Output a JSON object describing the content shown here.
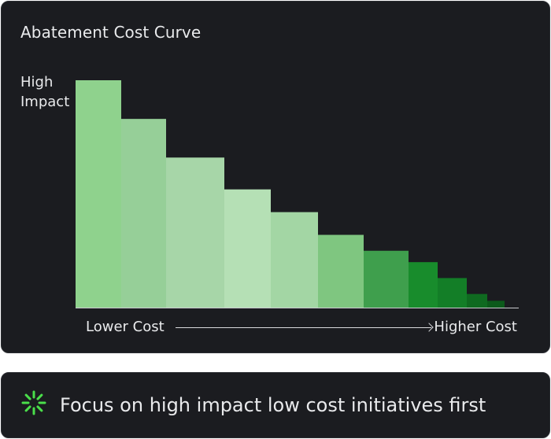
{
  "chart_data": {
    "type": "bar",
    "title": "Abatement Cost Curve",
    "ylabel_lines": [
      "High",
      "Impact"
    ],
    "xlabel_left": "Lower Cost",
    "xlabel_right": "Higher Cost",
    "grid": false,
    "ylim": [
      0,
      100
    ],
    "values": [
      100,
      83,
      66,
      52,
      42,
      32,
      25,
      20,
      13,
      6,
      3
    ],
    "widths": [
      58,
      57,
      74,
      59,
      60,
      58,
      57,
      37,
      37,
      26,
      22
    ],
    "colors": [
      "#8fd28d",
      "#96cf98",
      "#a7d6a8",
      "#b5e0b5",
      "#a3d6a4",
      "#7fc680",
      "#3f9f4d",
      "#188c2c",
      "#137e27",
      "#0f6a20",
      "#0c5a1b"
    ]
  },
  "tip": {
    "icon": "loader-icon",
    "text": "Focus on high impact low cost initiatives first",
    "accent_color": "#4ade4a"
  }
}
